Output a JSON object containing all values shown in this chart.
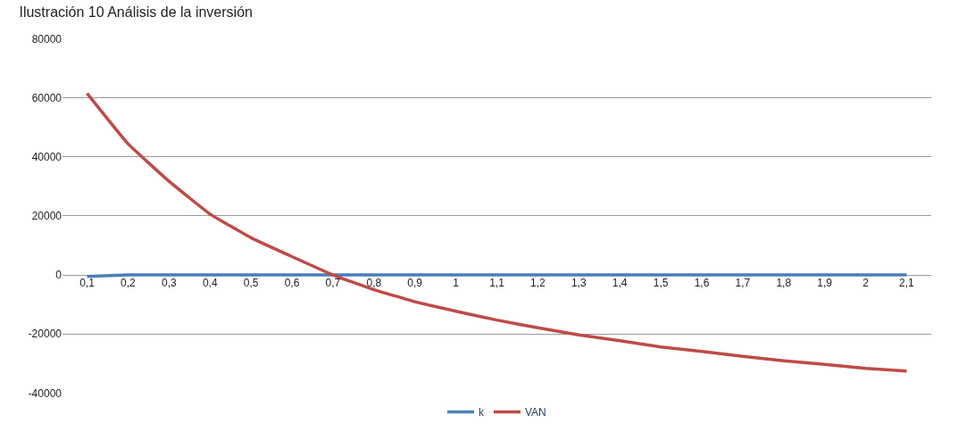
{
  "chart_data": {
    "type": "line",
    "title": "Ilustración 10 Análisis de la inversión",
    "categories": [
      "0,1",
      "0,2",
      "0,3",
      "0,4",
      "0,5",
      "0,6",
      "0,7",
      "0,8",
      "0,9",
      "1",
      "1,1",
      "1,2",
      "1,3",
      "1,4",
      "1,5",
      "1,6",
      "1,7",
      "1,8",
      "1,9",
      "2",
      "2,1"
    ],
    "series": [
      {
        "name": "k",
        "color": "#4a7ebb",
        "values": [
          -500,
          0,
          0,
          0,
          0,
          0,
          0,
          0,
          0,
          0,
          0,
          0,
          0,
          0,
          0,
          0,
          0,
          0,
          0,
          0,
          0
        ]
      },
      {
        "name": "VAN",
        "color": "#be4b48",
        "values": [
          61500,
          44400,
          31700,
          20600,
          12600,
          6200,
          0,
          -5000,
          -9100,
          -12300,
          -15300,
          -17900,
          -20300,
          -22300,
          -24400,
          -25900,
          -27600,
          -29100,
          -30300,
          -31700,
          -32600
        ]
      }
    ],
    "ylim": [
      -40000,
      80000
    ],
    "yticks": [
      -40000,
      -20000,
      0,
      20000,
      40000,
      60000,
      80000
    ],
    "grid": "y",
    "legend": "bottom",
    "marker": "none",
    "line_style": "solid"
  }
}
